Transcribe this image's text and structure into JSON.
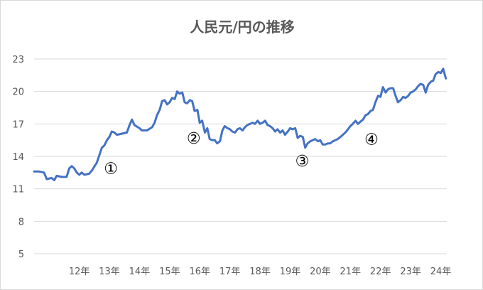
{
  "chart_data": {
    "type": "line",
    "title": "人民元/円の推移",
    "xlabel": "",
    "ylabel": "",
    "ylim": [
      5,
      23
    ],
    "yticks": [
      5,
      8,
      11,
      14,
      17,
      20,
      23
    ],
    "xlim": [
      2011,
      2024.7
    ],
    "xticks": [
      {
        "x": 2012.5,
        "label": "12年"
      },
      {
        "x": 2013.5,
        "label": "13年"
      },
      {
        "x": 2014.5,
        "label": "14年"
      },
      {
        "x": 2015.5,
        "label": "15年"
      },
      {
        "x": 2016.5,
        "label": "16年"
      },
      {
        "x": 2017.5,
        "label": "17年"
      },
      {
        "x": 2018.5,
        "label": "18年"
      },
      {
        "x": 2019.5,
        "label": "19年"
      },
      {
        "x": 2020.5,
        "label": "20年"
      },
      {
        "x": 2021.5,
        "label": "21年"
      },
      {
        "x": 2022.5,
        "label": "22年"
      },
      {
        "x": 2023.5,
        "label": "23年"
      },
      {
        "x": 2024.5,
        "label": "24年"
      }
    ],
    "grid": true,
    "line_color": "#4472c4",
    "series": [
      {
        "points": [
          [
            2011.0,
            12.6
          ],
          [
            2011.17,
            12.6
          ],
          [
            2011.33,
            12.5
          ],
          [
            2011.42,
            11.9
          ],
          [
            2011.58,
            12.0
          ],
          [
            2011.67,
            11.8
          ],
          [
            2011.75,
            12.2
          ],
          [
            2011.92,
            12.1
          ],
          [
            2012.08,
            12.1
          ],
          [
            2012.17,
            12.9
          ],
          [
            2012.25,
            13.1
          ],
          [
            2012.33,
            12.9
          ],
          [
            2012.42,
            12.5
          ],
          [
            2012.5,
            12.3
          ],
          [
            2012.58,
            12.5
          ],
          [
            2012.67,
            12.3
          ],
          [
            2012.83,
            12.4
          ],
          [
            2012.92,
            12.7
          ],
          [
            2013.08,
            13.4
          ],
          [
            2013.25,
            14.8
          ],
          [
            2013.33,
            15.0
          ],
          [
            2013.42,
            15.5
          ],
          [
            2013.5,
            15.8
          ],
          [
            2013.58,
            16.3
          ],
          [
            2013.67,
            16.2
          ],
          [
            2013.75,
            16.0
          ],
          [
            2013.92,
            16.1
          ],
          [
            2014.08,
            16.2
          ],
          [
            2014.17,
            16.9
          ],
          [
            2014.25,
            17.4
          ],
          [
            2014.33,
            16.9
          ],
          [
            2014.5,
            16.6
          ],
          [
            2014.58,
            16.4
          ],
          [
            2014.75,
            16.4
          ],
          [
            2014.92,
            16.7
          ],
          [
            2015.0,
            17.1
          ],
          [
            2015.08,
            17.8
          ],
          [
            2015.17,
            18.3
          ],
          [
            2015.25,
            19.1
          ],
          [
            2015.33,
            19.2
          ],
          [
            2015.42,
            18.8
          ],
          [
            2015.5,
            19.0
          ],
          [
            2015.58,
            19.4
          ],
          [
            2015.67,
            19.3
          ],
          [
            2015.75,
            20.0
          ],
          [
            2015.83,
            19.8
          ],
          [
            2015.92,
            19.9
          ],
          [
            2016.0,
            19.0
          ],
          [
            2016.08,
            18.9
          ],
          [
            2016.17,
            19.2
          ],
          [
            2016.25,
            19.1
          ],
          [
            2016.33,
            18.2
          ],
          [
            2016.42,
            18.3
          ],
          [
            2016.5,
            17.1
          ],
          [
            2016.58,
            17.3
          ],
          [
            2016.67,
            16.2
          ],
          [
            2016.75,
            16.6
          ],
          [
            2016.83,
            15.6
          ],
          [
            2016.92,
            15.5
          ],
          [
            2017.0,
            15.5
          ],
          [
            2017.08,
            15.2
          ],
          [
            2017.17,
            15.4
          ],
          [
            2017.25,
            16.4
          ],
          [
            2017.33,
            16.8
          ],
          [
            2017.42,
            16.6
          ],
          [
            2017.5,
            16.5
          ],
          [
            2017.58,
            16.3
          ],
          [
            2017.67,
            16.2
          ],
          [
            2017.75,
            16.5
          ],
          [
            2017.83,
            16.6
          ],
          [
            2017.92,
            16.4
          ],
          [
            2018.0,
            16.7
          ],
          [
            2018.08,
            16.9
          ],
          [
            2018.17,
            17.0
          ],
          [
            2018.25,
            17.1
          ],
          [
            2018.33,
            17.0
          ],
          [
            2018.42,
            17.3
          ],
          [
            2018.5,
            17.0
          ],
          [
            2018.58,
            17.1
          ],
          [
            2018.67,
            17.3
          ],
          [
            2018.75,
            16.9
          ],
          [
            2018.83,
            16.8
          ],
          [
            2018.92,
            16.6
          ],
          [
            2019.0,
            16.3
          ],
          [
            2019.08,
            16.5
          ],
          [
            2019.17,
            16.2
          ],
          [
            2019.25,
            16.4
          ],
          [
            2019.33,
            16.0
          ],
          [
            2019.42,
            16.3
          ],
          [
            2019.5,
            16.6
          ],
          [
            2019.58,
            16.5
          ],
          [
            2019.67,
            16.6
          ],
          [
            2019.75,
            15.7
          ],
          [
            2019.83,
            15.9
          ],
          [
            2019.92,
            15.8
          ],
          [
            2020.0,
            14.8
          ],
          [
            2020.08,
            15.2
          ],
          [
            2020.17,
            15.4
          ],
          [
            2020.25,
            15.5
          ],
          [
            2020.33,
            15.6
          ],
          [
            2020.42,
            15.4
          ],
          [
            2020.5,
            15.5
          ],
          [
            2020.58,
            15.1
          ],
          [
            2020.67,
            15.1
          ],
          [
            2020.75,
            15.2
          ],
          [
            2020.83,
            15.2
          ],
          [
            2020.92,
            15.4
          ],
          [
            2021.0,
            15.5
          ],
          [
            2021.08,
            15.6
          ],
          [
            2021.17,
            15.8
          ],
          [
            2021.25,
            16.0
          ],
          [
            2021.33,
            16.2
          ],
          [
            2021.42,
            16.5
          ],
          [
            2021.5,
            16.8
          ],
          [
            2021.58,
            17.0
          ],
          [
            2021.67,
            17.3
          ],
          [
            2021.75,
            17.0
          ],
          [
            2021.83,
            17.2
          ],
          [
            2021.92,
            17.4
          ],
          [
            2022.0,
            17.8
          ],
          [
            2022.08,
            17.9
          ],
          [
            2022.17,
            18.2
          ],
          [
            2022.25,
            18.3
          ],
          [
            2022.33,
            19.0
          ],
          [
            2022.42,
            19.6
          ],
          [
            2022.5,
            19.5
          ],
          [
            2022.58,
            20.4
          ],
          [
            2022.67,
            19.9
          ],
          [
            2022.75,
            20.2
          ],
          [
            2022.83,
            20.3
          ],
          [
            2022.92,
            20.3
          ],
          [
            2023.0,
            19.6
          ],
          [
            2023.08,
            19.0
          ],
          [
            2023.17,
            19.2
          ],
          [
            2023.25,
            19.5
          ],
          [
            2023.33,
            19.4
          ],
          [
            2023.42,
            19.6
          ],
          [
            2023.5,
            19.9
          ],
          [
            2023.58,
            20.0
          ],
          [
            2023.67,
            20.2
          ],
          [
            2023.75,
            20.5
          ],
          [
            2023.83,
            20.7
          ],
          [
            2023.92,
            20.6
          ],
          [
            2024.0,
            19.9
          ],
          [
            2024.08,
            20.6
          ],
          [
            2024.17,
            20.9
          ],
          [
            2024.25,
            21.0
          ],
          [
            2024.33,
            21.6
          ],
          [
            2024.42,
            21.8
          ],
          [
            2024.5,
            21.7
          ],
          [
            2024.58,
            22.1
          ],
          [
            2024.67,
            21.2
          ]
        ]
      }
    ],
    "annotations": [
      {
        "text": "①",
        "x": 2013.55,
        "y": 12.9
      },
      {
        "text": "②",
        "x": 2016.3,
        "y": 15.7
      },
      {
        "text": "③",
        "x": 2019.9,
        "y": 13.6
      },
      {
        "text": "④",
        "x": 2022.2,
        "y": 15.6
      }
    ]
  }
}
